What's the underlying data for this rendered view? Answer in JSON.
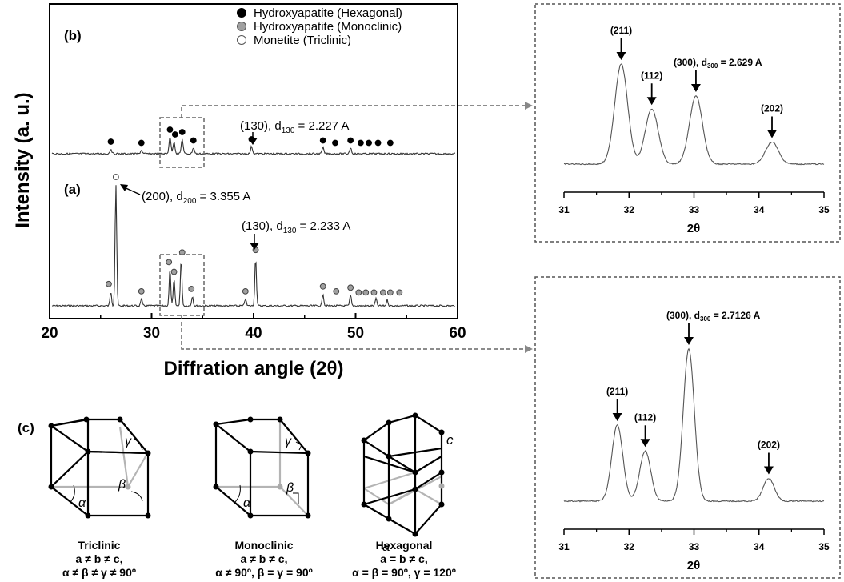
{
  "chart_data": [
    {
      "type": "line",
      "panel": "main",
      "ylabel": "Intensity (a. u.)",
      "xlabel": "Diffration angle (2θ)",
      "xlim": [
        20,
        60
      ],
      "xticks": [
        "20",
        "30",
        "40",
        "50",
        "60"
      ],
      "legend": {
        "placement": "top",
        "entries": [
          {
            "name": "Hydroxyapatite (Hexagonal)",
            "marker": "filled"
          },
          {
            "name": "Hydroxyapatite (Monoclinic)",
            "marker": "gray"
          },
          {
            "name": "Monetite (Triclinic)",
            "marker": "open"
          }
        ]
      },
      "series": [
        {
          "name": "(a)",
          "peaks": [
            {
              "x": 26.0,
              "h": 0.12
            },
            {
              "x": 26.5,
              "h": 1.0
            },
            {
              "x": 29.0,
              "h": 0.06
            },
            {
              "x": 31.8,
              "h": 0.3
            },
            {
              "x": 32.2,
              "h": 0.22
            },
            {
              "x": 32.9,
              "h": 0.38
            },
            {
              "x": 34.0,
              "h": 0.08
            },
            {
              "x": 39.2,
              "h": 0.06
            },
            {
              "x": 40.2,
              "h": 0.4
            },
            {
              "x": 46.8,
              "h": 0.1
            },
            {
              "x": 49.5,
              "h": 0.09
            },
            {
              "x": 52.0,
              "h": 0.06
            },
            {
              "x": 53.1,
              "h": 0.05
            }
          ],
          "markers": [
            {
              "x": 25.8,
              "type": "gray",
              "h": 0.12
            },
            {
              "x": 26.5,
              "type": "open",
              "h": 1.0
            },
            {
              "x": 29.0,
              "type": "gray",
              "h": 0.06
            },
            {
              "x": 31.7,
              "type": "gray",
              "h": 0.3
            },
            {
              "x": 32.2,
              "type": "gray",
              "h": 0.22
            },
            {
              "x": 33.0,
              "type": "gray",
              "h": 0.38
            },
            {
              "x": 33.9,
              "type": "gray",
              "h": 0.08
            },
            {
              "x": 39.2,
              "type": "gray",
              "h": 0.06
            },
            {
              "x": 40.2,
              "type": "gray",
              "h": 0.4
            },
            {
              "x": 46.8,
              "type": "gray",
              "h": 0.1
            },
            {
              "x": 48.1,
              "type": "gray",
              "h": 0.06
            },
            {
              "x": 49.5,
              "type": "gray",
              "h": 0.09
            },
            {
              "x": 50.3,
              "type": "gray",
              "h": 0.05
            },
            {
              "x": 51.0,
              "type": "gray",
              "h": 0.05
            },
            {
              "x": 51.8,
              "type": "gray",
              "h": 0.05
            },
            {
              "x": 52.7,
              "type": "gray",
              "h": 0.05
            },
            {
              "x": 53.4,
              "type": "gray",
              "h": 0.05
            },
            {
              "x": 54.3,
              "type": "gray",
              "h": 0.05
            }
          ],
          "annotations": [
            {
              "pre": "(200), d",
              "sub": "200",
              "post": " = 3.355 A"
            },
            {
              "pre": "(130), d",
              "sub": "130",
              "post": " = 2.233 A"
            }
          ]
        },
        {
          "name": "(b)",
          "peaks": [
            {
              "x": 26.0,
              "h": 0.04
            },
            {
              "x": 29.0,
              "h": 0.03
            },
            {
              "x": 31.8,
              "h": 0.14
            },
            {
              "x": 32.2,
              "h": 0.1
            },
            {
              "x": 33.0,
              "h": 0.12
            },
            {
              "x": 34.1,
              "h": 0.05
            },
            {
              "x": 39.8,
              "h": 0.06
            },
            {
              "x": 46.8,
              "h": 0.05
            },
            {
              "x": 49.5,
              "h": 0.05
            }
          ],
          "markers": [
            {
              "x": 26.0,
              "type": "filled",
              "h": 0.04
            },
            {
              "x": 29.0,
              "type": "filled",
              "h": 0.03
            },
            {
              "x": 31.8,
              "type": "filled",
              "h": 0.14
            },
            {
              "x": 32.3,
              "type": "filled",
              "h": 0.1
            },
            {
              "x": 33.0,
              "type": "filled",
              "h": 0.12
            },
            {
              "x": 34.1,
              "type": "filled",
              "h": 0.05
            },
            {
              "x": 39.8,
              "type": "filled",
              "h": 0.06
            },
            {
              "x": 46.8,
              "type": "filled",
              "h": 0.05
            },
            {
              "x": 48.0,
              "type": "filled",
              "h": 0.03
            },
            {
              "x": 49.5,
              "type": "filled",
              "h": 0.05
            },
            {
              "x": 50.5,
              "type": "filled",
              "h": 0.03
            },
            {
              "x": 51.3,
              "type": "filled",
              "h": 0.03
            },
            {
              "x": 52.2,
              "type": "filled",
              "h": 0.03
            },
            {
              "x": 53.4,
              "type": "filled",
              "h": 0.03
            }
          ],
          "annotations": [
            {
              "pre": "(130), d",
              "sub": "130",
              "post": " = 2.227 A"
            }
          ]
        }
      ]
    },
    {
      "type": "line",
      "panel": "zoom-b",
      "xlabel": "2θ",
      "xlim": [
        31,
        35
      ],
      "xticks": [
        "31",
        "32",
        "33",
        "34",
        "35"
      ],
      "peaks": [
        {
          "x": 31.88,
          "h": 1.0,
          "label": "(211)"
        },
        {
          "x": 32.35,
          "h": 0.55,
          "label": "(112)"
        },
        {
          "x": 33.03,
          "h": 0.68,
          "label_pre": "(300), d",
          "label_sub": "300",
          "label_post": " = 2.629 A"
        },
        {
          "x": 34.2,
          "h": 0.22,
          "label": "(202)"
        }
      ]
    },
    {
      "type": "line",
      "panel": "zoom-a",
      "xlabel": "2θ",
      "xlim": [
        31,
        35
      ],
      "xticks": [
        "31",
        "32",
        "33",
        "34",
        "35"
      ],
      "peaks": [
        {
          "x": 31.82,
          "h": 0.5,
          "label": "(211)"
        },
        {
          "x": 32.25,
          "h": 0.33,
          "label": "(112)"
        },
        {
          "x": 32.92,
          "h": 1.0,
          "label_pre": "(300), d",
          "label_sub": "300",
          "label_post": " = 2.7126 A"
        },
        {
          "x": 34.15,
          "h": 0.15,
          "label": "(202)"
        }
      ]
    }
  ],
  "panel_c": {
    "label": "(c)",
    "cells": [
      {
        "name": "Triclinic",
        "line1": "a ≠ b ≠ c,",
        "line2": "α ≠ β ≠ γ ≠ 90º"
      },
      {
        "name": "Monoclinic",
        "line1": "a ≠ b ≠ c,",
        "line2": "α ≠ 90º, β = γ = 90º"
      },
      {
        "name": "Hexagonal",
        "line1": "a = b ≠ c,",
        "line2": "α = β = 90º, γ = 120º"
      }
    ],
    "greek": {
      "alpha": "α",
      "beta": "β",
      "gamma": "γ",
      "a": "a",
      "c": "c"
    }
  },
  "colors": {
    "axis": "#000000",
    "line": "#333333",
    "gray_marker": "#a0a0a0",
    "dashed": "#666666",
    "lattice_back": "#b4b4b4"
  }
}
